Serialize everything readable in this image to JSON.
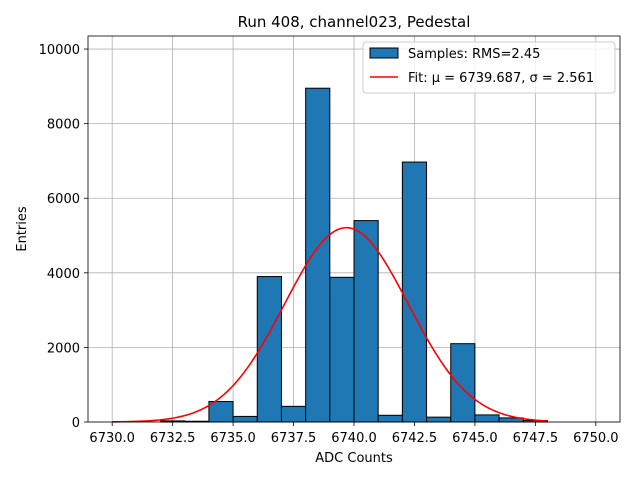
{
  "chart_data": {
    "type": "bar",
    "title": "Run 408, channel023, Pedestal",
    "xlabel": "ADC Counts",
    "ylabel": "Entries",
    "xlim": [
      6729.0,
      6751.0
    ],
    "ylim": [
      0,
      10350
    ],
    "xticks": [
      6730.0,
      6732.5,
      6735.0,
      6737.5,
      6740.0,
      6742.5,
      6745.0,
      6747.5,
      6750.0
    ],
    "xtick_labels": [
      "6730.0",
      "6732.5",
      "6735.0",
      "6737.5",
      "6740.0",
      "6742.5",
      "6745.0",
      "6747.5",
      "6750.0"
    ],
    "yticks": [
      0,
      2000,
      4000,
      6000,
      8000,
      10000
    ],
    "ytick_labels": [
      "0",
      "2000",
      "4000",
      "6000",
      "8000",
      "10000"
    ],
    "grid": true,
    "legend_position": "top-right",
    "histogram": {
      "name": "Samples: RMS=2.45",
      "color": "#1f77b4",
      "bin_width": 1.0,
      "bin_left_edges": [
        6732,
        6733,
        6734,
        6735,
        6736,
        6737,
        6738,
        6739,
        6740,
        6741,
        6742,
        6743,
        6744,
        6745,
        6746,
        6747
      ],
      "counts": [
        30,
        20,
        550,
        150,
        3900,
        420,
        8950,
        3880,
        5400,
        180,
        6970,
        130,
        2100,
        190,
        110,
        40
      ]
    },
    "fit": {
      "name": "Fit: μ = 6739.687, σ = 2.561",
      "color": "#ff0000",
      "type": "gaussian",
      "mu": 6739.687,
      "sigma": 2.561,
      "amplitude": 5210,
      "x_range": [
        6730,
        6748
      ]
    }
  }
}
